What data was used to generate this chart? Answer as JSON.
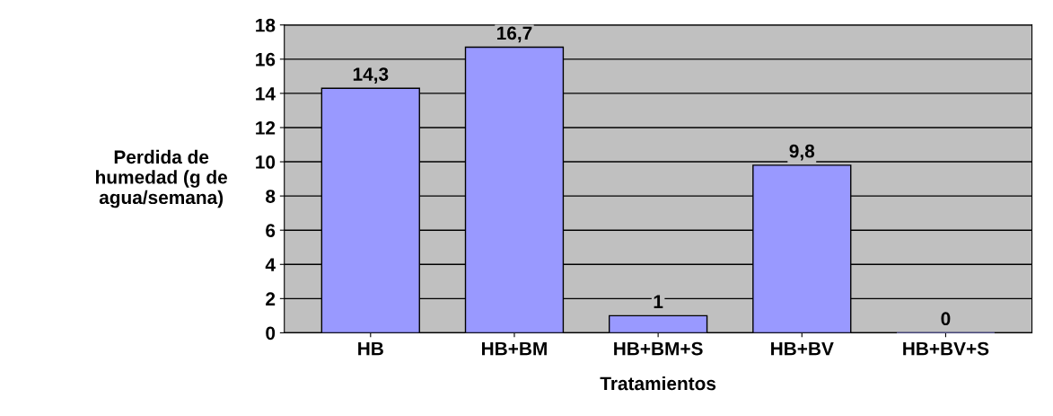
{
  "chart_data": {
    "type": "bar",
    "categories": [
      "HB",
      "HB+BM",
      "HB+BM+S",
      "HB+BV",
      "HB+BV+S"
    ],
    "values": [
      14.3,
      16.7,
      1,
      9.8,
      0
    ],
    "value_labels": [
      "14,3",
      "16,7",
      "1",
      "9,8",
      "0"
    ],
    "color": "#9999ff",
    "xlabel": "Tratamientos",
    "ylabel": "Perdida de\nhumedad (g de\nagua/semana)",
    "ylim": [
      0,
      18
    ],
    "yticks": [
      0,
      2,
      4,
      6,
      8,
      10,
      12,
      14,
      16,
      18
    ],
    "grid": "y"
  }
}
